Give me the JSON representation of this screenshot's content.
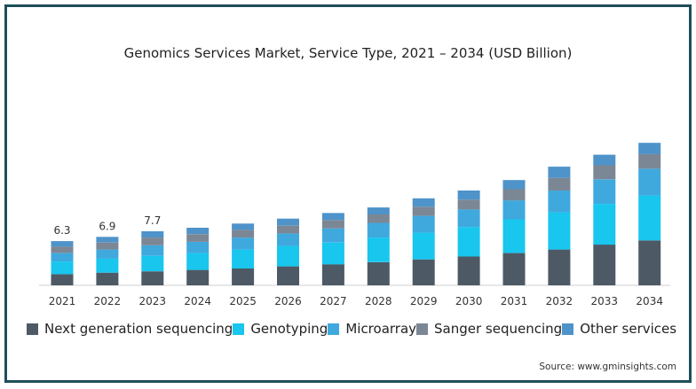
{
  "chart_data": {
    "type": "bar",
    "stacked": true,
    "title": "Genomics Services Market, Service Type, 2021 – 2034 (USD Billion)",
    "categories": [
      "2021",
      "2022",
      "2023",
      "2024",
      "2025",
      "2026",
      "2027",
      "2028",
      "2029",
      "2030",
      "2031",
      "2032",
      "2033",
      "2034"
    ],
    "series": [
      {
        "name": "Next generation sequencing",
        "color": "#4d5a66",
        "values": [
          1.6,
          1.8,
          2.0,
          2.2,
          2.4,
          2.7,
          3.0,
          3.3,
          3.7,
          4.1,
          4.6,
          5.1,
          5.8,
          6.4
        ]
      },
      {
        "name": "Genotyping",
        "color": "#18c6ee",
        "values": [
          1.8,
          2.0,
          2.2,
          2.4,
          2.7,
          2.9,
          3.1,
          3.5,
          3.8,
          4.2,
          4.8,
          5.3,
          5.8,
          6.4
        ]
      },
      {
        "name": "Microarray",
        "color": "#3fa9de",
        "values": [
          1.2,
          1.3,
          1.5,
          1.6,
          1.7,
          1.8,
          2.0,
          2.1,
          2.4,
          2.5,
          2.7,
          3.1,
          3.5,
          3.8
        ]
      },
      {
        "name": "Sanger sequencing",
        "color": "#7c8795",
        "values": [
          0.9,
          1.0,
          1.1,
          1.1,
          1.1,
          1.1,
          1.2,
          1.2,
          1.3,
          1.4,
          1.6,
          1.8,
          2.0,
          2.1
        ]
      },
      {
        "name": "Other services",
        "color": "#4e93c9",
        "values": [
          0.8,
          0.8,
          0.9,
          0.9,
          0.9,
          1.0,
          1.0,
          1.0,
          1.2,
          1.3,
          1.3,
          1.6,
          1.5,
          1.6
        ]
      }
    ],
    "data_labels": {
      "2021": "6.3",
      "2022": "6.9",
      "2023": "7.7"
    },
    "ylim": [
      0,
      26
    ],
    "grid": false,
    "legend": "bottom"
  },
  "source": "Source: www.gminsights.com"
}
